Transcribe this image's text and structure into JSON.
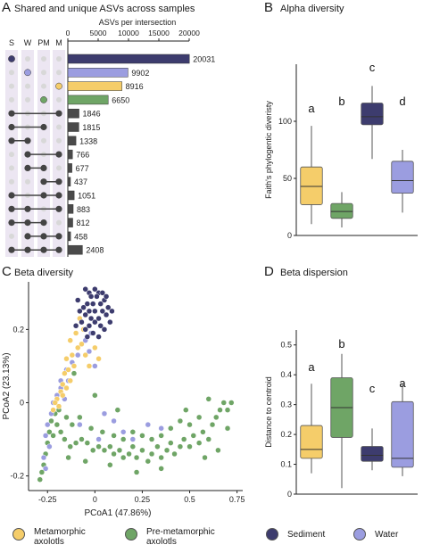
{
  "panels": {
    "a": {
      "letter": "A",
      "title": "Shared and unique ASVs across samples"
    },
    "b": {
      "letter": "B",
      "title": "Alpha diversity"
    },
    "c": {
      "letter": "C",
      "title": "Beta diversity"
    },
    "d": {
      "letter": "D",
      "title": "Beta dispersion"
    }
  },
  "colors": {
    "sediment": "#3d3c6e",
    "water": "#9b9de0",
    "metamorphic": "#f5cd6a",
    "premetamorphic": "#6fa566",
    "bar": "#4a4a4a"
  },
  "legend": [
    {
      "label1": "Metamorphic",
      "label2": "axolotls",
      "color": "#f5cd6a"
    },
    {
      "label1": "Pre-metamorphic",
      "label2": "axolotls",
      "color": "#6fa566"
    },
    {
      "label1": "Sediment",
      "label2": "",
      "color": "#3d3c6e"
    },
    {
      "label1": "Water",
      "label2": "",
      "color": "#9b9de0"
    }
  ],
  "chart_data": [
    {
      "type": "bar",
      "panel": "A",
      "title": "Shared and unique ASVs across samples",
      "xlabel": "ASVs per intersection",
      "xlim": [
        0,
        20000
      ],
      "xticks": [
        "0",
        "5000",
        "10000",
        "15000",
        "20000"
      ],
      "sets": [
        "S",
        "W",
        "PM",
        "M"
      ],
      "intersections": [
        {
          "members": [
            "S"
          ],
          "value": 20031,
          "color": "#3d3c6e"
        },
        {
          "members": [
            "W"
          ],
          "value": 9902,
          "color": "#9b9de0"
        },
        {
          "members": [
            "M"
          ],
          "value": 8916,
          "color": "#f5cd6a"
        },
        {
          "members": [
            "PM"
          ],
          "value": 6650,
          "color": "#6fa566"
        },
        {
          "members": [
            "S",
            "M"
          ],
          "value": 1846
        },
        {
          "members": [
            "S",
            "PM"
          ],
          "value": 1815
        },
        {
          "members": [
            "S",
            "W"
          ],
          "value": 1338
        },
        {
          "members": [
            "W",
            "M"
          ],
          "value": 766
        },
        {
          "members": [
            "W",
            "PM"
          ],
          "value": 677
        },
        {
          "members": [
            "PM",
            "M"
          ],
          "value": 437
        },
        {
          "members": [
            "S",
            "PM",
            "M"
          ],
          "value": 1051
        },
        {
          "members": [
            "S",
            "W",
            "M"
          ],
          "value": 883
        },
        {
          "members": [
            "S",
            "W",
            "PM"
          ],
          "value": 812
        },
        {
          "members": [
            "W",
            "PM",
            "M"
          ],
          "value": 458
        },
        {
          "members": [
            "S",
            "W",
            "PM",
            "M"
          ],
          "value": 2408
        }
      ]
    },
    {
      "type": "box",
      "panel": "B",
      "title": "Alpha diversity",
      "ylabel": "Faith's phylogentic diveristy",
      "ylim": [
        0,
        150
      ],
      "yticks": [
        "0",
        "50",
        "100"
      ],
      "series": [
        {
          "group": "metamorphic",
          "letter": "a",
          "whisker_low": 10,
          "q1": 27,
          "median": 43,
          "q3": 60,
          "whisker_high": 96
        },
        {
          "group": "premetamorphic",
          "letter": "b",
          "whisker_low": 7,
          "q1": 15,
          "median": 21,
          "q3": 28,
          "whisker_high": 38
        },
        {
          "group": "sediment",
          "letter": "c",
          "whisker_low": 67,
          "q1": 97,
          "median": 104,
          "q3": 116,
          "whisker_high": 131
        },
        {
          "group": "water",
          "letter": "d",
          "whisker_low": 20,
          "q1": 37,
          "median": 48,
          "q3": 65,
          "whisker_high": 75
        }
      ]
    },
    {
      "type": "scatter",
      "panel": "C",
      "title": "Beta diversity",
      "xlabel": "PCoA1 (47.86%)",
      "ylabel": "PCoA2 (23.13%)",
      "xlim": [
        -0.35,
        0.78
      ],
      "ylim": [
        -0.24,
        0.33
      ],
      "xticks": [
        "-0.25",
        "0",
        "0.25",
        "0.5",
        "0.75"
      ],
      "yticks": [
        "-0.2",
        "0",
        "0.2"
      ],
      "series": [
        {
          "group": "sediment",
          "points": [
            [
              -0.05,
              0.31
            ],
            [
              -0.03,
              0.3
            ],
            [
              0.0,
              0.31
            ],
            [
              0.02,
              0.3
            ],
            [
              0.04,
              0.3
            ],
            [
              -0.02,
              0.29
            ],
            [
              0.01,
              0.29
            ],
            [
              0.05,
              0.28
            ],
            [
              -0.04,
              0.27
            ],
            [
              -0.01,
              0.27
            ],
            [
              0.03,
              0.27
            ],
            [
              0.07,
              0.26
            ],
            [
              -0.06,
              0.26
            ],
            [
              -0.03,
              0.25
            ],
            [
              0.0,
              0.25
            ],
            [
              0.04,
              0.25
            ],
            [
              -0.08,
              0.25
            ],
            [
              -0.05,
              0.24
            ],
            [
              -0.02,
              0.23
            ],
            [
              0.02,
              0.23
            ],
            [
              0.06,
              0.24
            ],
            [
              -0.07,
              0.22
            ],
            [
              -0.03,
              0.21
            ],
            [
              0.0,
              0.22
            ],
            [
              0.03,
              0.21
            ],
            [
              -0.05,
              0.2
            ],
            [
              -0.01,
              0.19
            ],
            [
              0.05,
              0.2
            ],
            [
              -0.1,
              0.21
            ],
            [
              0.08,
              0.22
            ],
            [
              0.02,
              0.18
            ],
            [
              -0.04,
              0.18
            ],
            [
              0.09,
              0.25
            ],
            [
              -0.09,
              0.28
            ],
            [
              0.06,
              0.29
            ]
          ]
        },
        {
          "group": "metamorphic",
          "points": [
            [
              -0.08,
              0.23
            ],
            [
              -0.06,
              0.2
            ],
            [
              -0.1,
              0.19
            ],
            [
              -0.13,
              0.17
            ],
            [
              -0.09,
              0.15
            ],
            [
              -0.12,
              0.13
            ],
            [
              -0.07,
              0.16
            ],
            [
              -0.15,
              0.12
            ],
            [
              -0.11,
              0.1
            ],
            [
              -0.14,
              0.09
            ],
            [
              -0.16,
              0.08
            ],
            [
              -0.13,
              0.06
            ],
            [
              -0.17,
              0.05
            ],
            [
              -0.18,
              0.03
            ],
            [
              -0.2,
              0.01
            ],
            [
              -0.19,
              -0.01
            ],
            [
              -0.21,
              0.0
            ],
            [
              -0.17,
              0.02
            ],
            [
              -0.05,
              0.13
            ],
            [
              0.02,
              0.12
            ],
            [
              -0.03,
              0.1
            ],
            [
              0.0,
              0.15
            ],
            [
              -0.22,
              -0.02
            ],
            [
              -0.15,
              0.04
            ]
          ]
        },
        {
          "group": "water",
          "points": [
            [
              -0.02,
              0.19
            ],
            [
              -0.05,
              0.17
            ],
            [
              -0.09,
              0.13
            ],
            [
              -0.12,
              0.11
            ],
            [
              -0.15,
              0.09
            ],
            [
              -0.14,
              0.06
            ],
            [
              -0.18,
              0.04
            ],
            [
              -0.2,
              0.02
            ],
            [
              -0.22,
              0.0
            ],
            [
              -0.23,
              -0.03
            ],
            [
              -0.25,
              -0.06
            ],
            [
              -0.26,
              -0.09
            ],
            [
              -0.24,
              -0.12
            ],
            [
              -0.27,
              -0.15
            ],
            [
              -0.26,
              -0.18
            ],
            [
              -0.18,
              0.06
            ],
            [
              -0.03,
              0.14
            ],
            [
              0.0,
              0.1
            ],
            [
              0.05,
              -0.03
            ],
            [
              0.1,
              -0.05
            ],
            [
              0.15,
              -0.08
            ],
            [
              0.2,
              -0.1
            ],
            [
              0.28,
              -0.06
            ],
            [
              0.35,
              -0.07
            ],
            [
              -0.08,
              -0.06
            ],
            [
              0.02,
              -0.1
            ],
            [
              -0.16,
              0.01
            ]
          ]
        },
        {
          "group": "premetamorphic",
          "points": [
            [
              -0.29,
              -0.21
            ],
            [
              -0.28,
              -0.19
            ],
            [
              -0.27,
              -0.17
            ],
            [
              -0.26,
              -0.14
            ],
            [
              -0.25,
              -0.11
            ],
            [
              -0.24,
              -0.08
            ],
            [
              -0.23,
              -0.05
            ],
            [
              -0.21,
              -0.03
            ],
            [
              -0.19,
              -0.02
            ],
            [
              -0.2,
              -0.06
            ],
            [
              -0.22,
              -0.09
            ],
            [
              -0.18,
              -0.08
            ],
            [
              -0.16,
              -0.1
            ],
            [
              -0.13,
              -0.12
            ],
            [
              -0.1,
              -0.11
            ],
            [
              -0.07,
              -0.1
            ],
            [
              -0.04,
              -0.11
            ],
            [
              -0.01,
              -0.13
            ],
            [
              0.02,
              -0.12
            ],
            [
              0.05,
              -0.13
            ],
            [
              0.08,
              -0.12
            ],
            [
              0.1,
              -0.14
            ],
            [
              0.13,
              -0.13
            ],
            [
              0.15,
              -0.15
            ],
            [
              0.18,
              -0.14
            ],
            [
              0.2,
              -0.12
            ],
            [
              0.22,
              -0.15
            ],
            [
              0.25,
              -0.13
            ],
            [
              0.28,
              -0.16
            ],
            [
              0.3,
              -0.14
            ],
            [
              0.33,
              -0.12
            ],
            [
              0.35,
              -0.15
            ],
            [
              0.38,
              -0.13
            ],
            [
              0.4,
              -0.11
            ],
            [
              0.42,
              -0.14
            ],
            [
              0.45,
              -0.12
            ],
            [
              0.47,
              -0.1
            ],
            [
              0.5,
              -0.12
            ],
            [
              0.52,
              -0.09
            ],
            [
              0.55,
              -0.11
            ],
            [
              0.57,
              -0.08
            ],
            [
              0.6,
              -0.1
            ],
            [
              0.62,
              -0.06
            ],
            [
              0.64,
              -0.04
            ],
            [
              0.66,
              -0.02
            ],
            [
              0.68,
              0.0
            ],
            [
              0.7,
              -0.02
            ],
            [
              0.72,
              0.0
            ],
            [
              0.55,
              -0.04
            ],
            [
              0.5,
              -0.06
            ],
            [
              0.45,
              -0.05
            ],
            [
              0.4,
              -0.07
            ],
            [
              0.35,
              -0.09
            ],
            [
              0.3,
              -0.1
            ],
            [
              0.25,
              -0.09
            ],
            [
              0.2,
              -0.08
            ],
            [
              0.15,
              -0.1
            ],
            [
              0.1,
              -0.09
            ],
            [
              0.04,
              -0.08
            ],
            [
              -0.02,
              -0.07
            ],
            [
              -0.08,
              -0.04
            ],
            [
              -0.12,
              -0.06
            ],
            [
              -0.15,
              -0.04
            ],
            [
              -0.17,
              0.02
            ],
            [
              -0.11,
              0.08
            ],
            [
              0.0,
              0.02
            ],
            [
              0.12,
              -0.02
            ],
            [
              0.6,
              0.01
            ],
            [
              0.48,
              -0.02
            ],
            [
              0.35,
              -0.18
            ],
            [
              0.22,
              -0.19
            ],
            [
              0.08,
              -0.17
            ],
            [
              -0.05,
              -0.16
            ],
            [
              -0.14,
              -0.15
            ],
            [
              0.65,
              -0.13
            ],
            [
              0.58,
              -0.15
            ],
            [
              0.7,
              -0.07
            ]
          ]
        }
      ]
    },
    {
      "type": "box",
      "panel": "D",
      "title": "Beta dispersion",
      "ylabel": "Distance to centroid",
      "ylim": [
        0,
        0.55
      ],
      "yticks": [
        "0",
        "0.1",
        "0.2",
        "0.3",
        "0.4",
        "0.5"
      ],
      "series": [
        {
          "group": "metamorphic",
          "letter": "a",
          "whisker_low": 0.07,
          "q1": 0.12,
          "median": 0.15,
          "q3": 0.23,
          "whisker_high": 0.37
        },
        {
          "group": "premetamorphic",
          "letter": "b",
          "whisker_low": 0.02,
          "q1": 0.19,
          "median": 0.29,
          "q3": 0.39,
          "whisker_high": 0.47
        },
        {
          "group": "sediment",
          "letter": "c",
          "whisker_low": 0.08,
          "q1": 0.11,
          "median": 0.13,
          "q3": 0.16,
          "whisker_high": 0.22
        },
        {
          "group": "water",
          "letter": "a",
          "whisker_low": 0.06,
          "q1": 0.09,
          "median": 0.12,
          "q3": 0.31,
          "whisker_high": 0.37
        }
      ]
    }
  ]
}
